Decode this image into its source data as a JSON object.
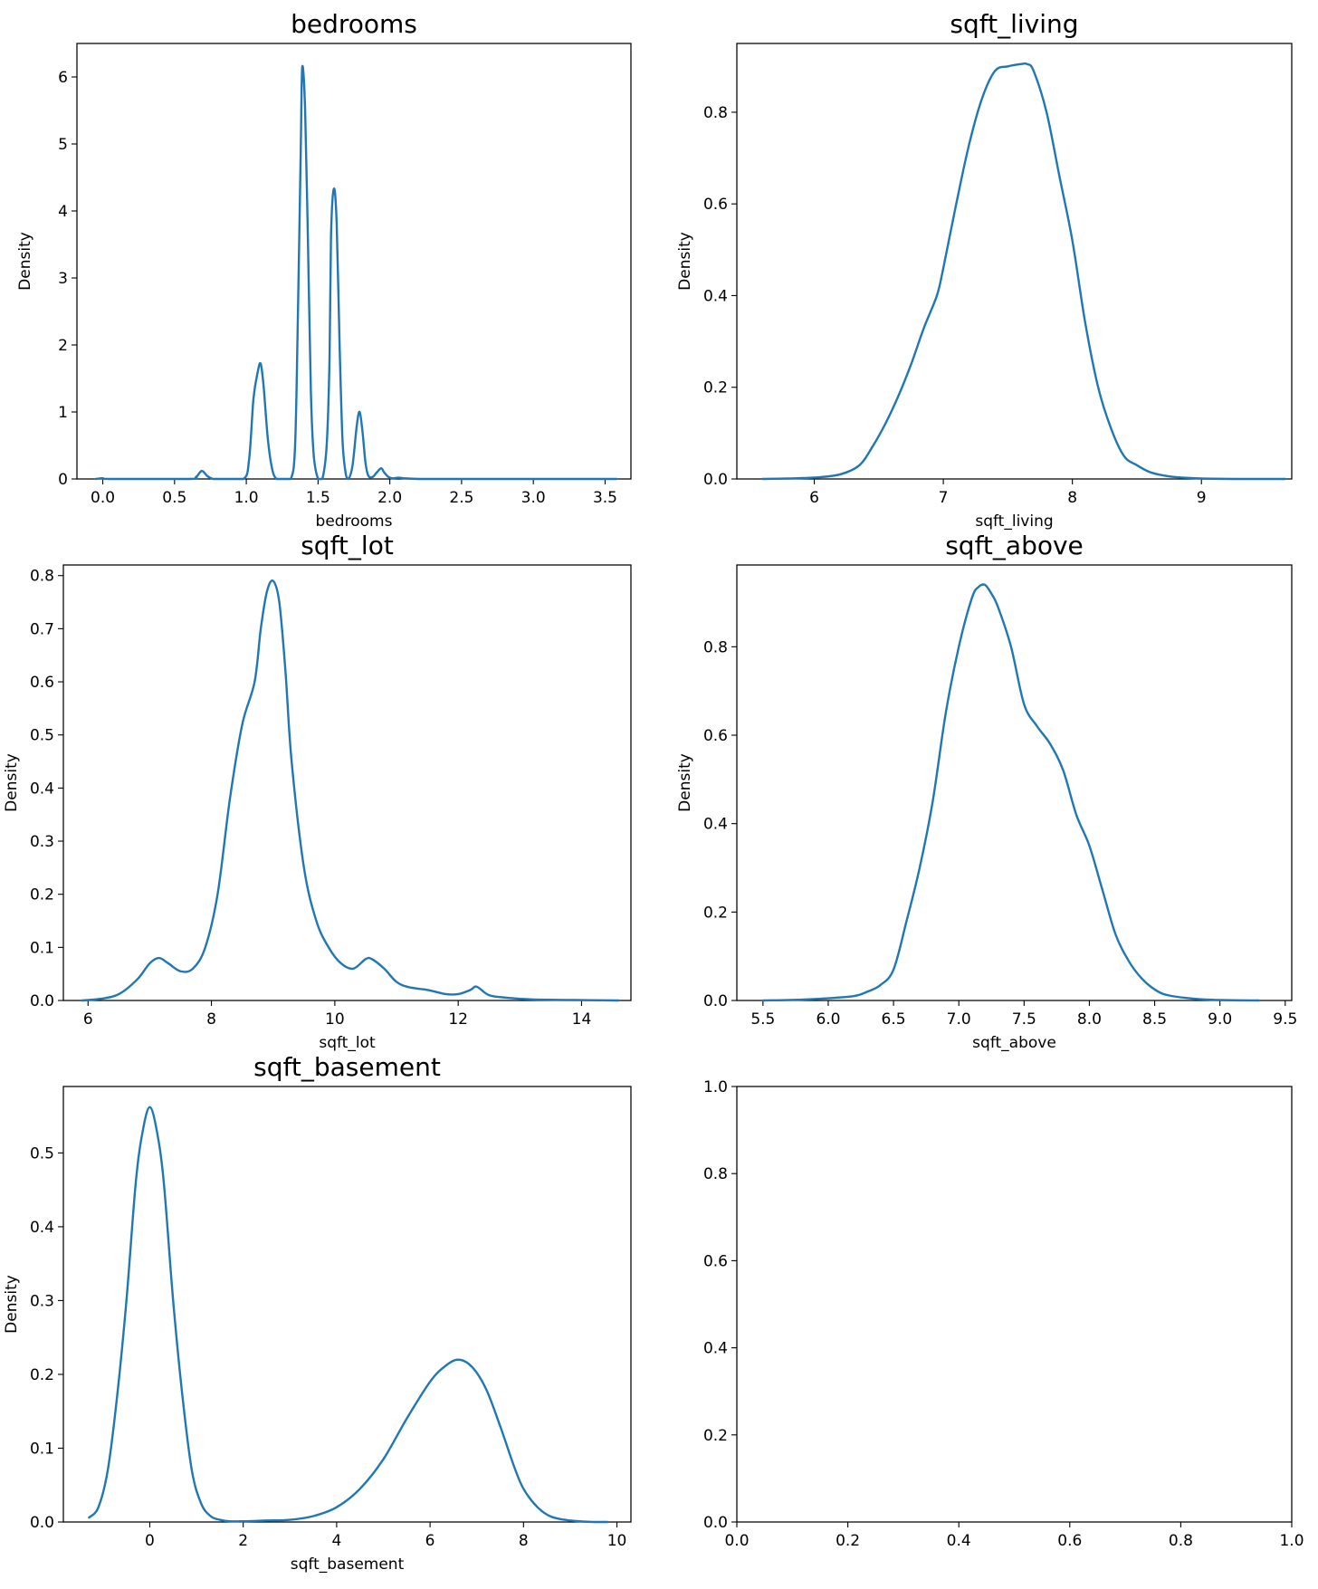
{
  "figure": {
    "line_color": "#1f77b4"
  },
  "chart_data": [
    {
      "type": "line",
      "title": "bedrooms",
      "xlabel": "bedrooms",
      "ylabel": "Density",
      "xlim": [
        -0.18,
        3.68
      ],
      "ylim": [
        0,
        6.5
      ],
      "xticks": [
        0,
        0.5,
        1,
        1.5,
        2,
        2.5,
        3,
        3.5
      ],
      "xtick_labels": [
        "0.0",
        "0.5",
        "1.0",
        "1.5",
        "2.0",
        "2.5",
        "3.0",
        "3.5"
      ],
      "yticks": [
        0,
        1,
        2,
        3,
        4,
        5,
        6
      ],
      "ytick_labels": [
        "0",
        "1",
        "2",
        "3",
        "4",
        "5",
        "6"
      ],
      "series": [
        {
          "x": [
            -0.05,
            0.0,
            0.05,
            0.6,
            0.65,
            0.69,
            0.73,
            0.77,
            0.82,
            0.98,
            1.02,
            1.05,
            1.08,
            1.1,
            1.12,
            1.15,
            1.18,
            1.21,
            1.25,
            1.31,
            1.34,
            1.36,
            1.38,
            1.39,
            1.41,
            1.43,
            1.45,
            1.47,
            1.5,
            1.53,
            1.56,
            1.58,
            1.59,
            1.61,
            1.63,
            1.65,
            1.67,
            1.69,
            1.71,
            1.74,
            1.77,
            1.79,
            1.81,
            1.83,
            1.85,
            1.88,
            1.91,
            1.94,
            1.96,
            1.99,
            2.02,
            2.06,
            2.1,
            2.2,
            2.4,
            2.6,
            3.0,
            3.58
          ],
          "y": [
            0,
            0.01,
            0,
            0,
            0.03,
            0.12,
            0.04,
            0,
            0,
            0,
            0.3,
            1.2,
            1.6,
            1.72,
            1.4,
            0.6,
            0.15,
            0,
            0,
            0,
            0.5,
            2.5,
            5.0,
            6.15,
            5.5,
            3.5,
            1.3,
            0.35,
            0,
            0,
            0.5,
            1.8,
            3.6,
            4.33,
            3.8,
            2.0,
            0.6,
            0.12,
            0,
            0.2,
            0.8,
            1.0,
            0.7,
            0.25,
            0.05,
            0.03,
            0.1,
            0.16,
            0.1,
            0.03,
            0.01,
            0.02,
            0.01,
            0,
            0,
            0,
            0,
            0
          ]
        }
      ]
    },
    {
      "type": "line",
      "title": "sqft_living",
      "xlabel": "sqft_living",
      "ylabel": "Density",
      "xlim": [
        5.4,
        9.7
      ],
      "ylim": [
        0,
        0.95
      ],
      "xticks": [
        6,
        7,
        8,
        9
      ],
      "xtick_labels": [
        "6",
        "7",
        "8",
        "9"
      ],
      "yticks": [
        0,
        0.2,
        0.4,
        0.6,
        0.8
      ],
      "ytick_labels": [
        "0.0",
        "0.2",
        "0.4",
        "0.6",
        "0.8"
      ],
      "series": [
        {
          "x": [
            5.6,
            5.8,
            6.0,
            6.2,
            6.35,
            6.45,
            6.55,
            6.65,
            6.75,
            6.85,
            6.95,
            7.0,
            7.1,
            7.2,
            7.3,
            7.4,
            7.5,
            7.6,
            7.65,
            7.7,
            7.8,
            7.9,
            8.0,
            8.1,
            8.2,
            8.3,
            8.4,
            8.5,
            8.6,
            8.7,
            8.8,
            9.0,
            9.3,
            9.65
          ],
          "y": [
            0,
            0.001,
            0.003,
            0.01,
            0.03,
            0.07,
            0.12,
            0.18,
            0.25,
            0.33,
            0.4,
            0.46,
            0.6,
            0.73,
            0.83,
            0.89,
            0.9,
            0.905,
            0.905,
            0.89,
            0.8,
            0.66,
            0.52,
            0.34,
            0.2,
            0.11,
            0.05,
            0.03,
            0.015,
            0.008,
            0.004,
            0.001,
            0,
            0
          ]
        }
      ]
    },
    {
      "type": "line",
      "title": "sqft_lot",
      "xlabel": "sqft_lot",
      "ylabel": "Density",
      "xlim": [
        5.6,
        14.8
      ],
      "ylim": [
        0,
        0.82
      ],
      "xticks": [
        6,
        8,
        10,
        12,
        14
      ],
      "xtick_labels": [
        "6",
        "8",
        "10",
        "12",
        "14"
      ],
      "yticks": [
        0,
        0.1,
        0.2,
        0.3,
        0.4,
        0.5,
        0.6,
        0.7,
        0.8
      ],
      "ytick_labels": [
        "0.0",
        "0.1",
        "0.2",
        "0.3",
        "0.4",
        "0.5",
        "0.6",
        "0.7",
        "0.8"
      ],
      "series": [
        {
          "x": [
            5.9,
            6.2,
            6.5,
            6.8,
            7.0,
            7.15,
            7.3,
            7.5,
            7.7,
            7.9,
            8.1,
            8.3,
            8.5,
            8.7,
            8.8,
            8.9,
            9.0,
            9.1,
            9.2,
            9.3,
            9.5,
            9.7,
            9.9,
            10.1,
            10.3,
            10.5,
            10.6,
            10.8,
            11.0,
            11.2,
            11.5,
            11.8,
            12.0,
            12.2,
            12.3,
            12.5,
            12.8,
            13.2,
            13.8,
            14.6
          ],
          "y": [
            0,
            0.003,
            0.012,
            0.04,
            0.07,
            0.08,
            0.07,
            0.055,
            0.06,
            0.1,
            0.2,
            0.38,
            0.52,
            0.6,
            0.7,
            0.77,
            0.79,
            0.75,
            0.62,
            0.45,
            0.25,
            0.15,
            0.1,
            0.07,
            0.06,
            0.078,
            0.078,
            0.06,
            0.035,
            0.025,
            0.02,
            0.012,
            0.012,
            0.02,
            0.026,
            0.01,
            0.005,
            0.002,
            0.001,
            0
          ]
        }
      ]
    },
    {
      "type": "line",
      "title": "sqft_above",
      "xlabel": "sqft_above",
      "ylabel": "Density",
      "xlim": [
        5.3,
        9.55
      ],
      "ylim": [
        0,
        0.985
      ],
      "xticks": [
        5.5,
        6.0,
        6.5,
        7.0,
        7.5,
        8.0,
        8.5,
        9.0,
        9.5
      ],
      "xtick_labels": [
        "5.5",
        "6.0",
        "6.5",
        "7.0",
        "7.5",
        "8.0",
        "8.5",
        "9.0",
        "9.5"
      ],
      "yticks": [
        0,
        0.2,
        0.4,
        0.6,
        0.8
      ],
      "ytick_labels": [
        "0.0",
        "0.2",
        "0.4",
        "0.6",
        "0.8"
      ],
      "series": [
        {
          "x": [
            5.5,
            5.8,
            6.0,
            6.2,
            6.3,
            6.4,
            6.5,
            6.6,
            6.7,
            6.8,
            6.9,
            7.0,
            7.1,
            7.15,
            7.2,
            7.25,
            7.3,
            7.4,
            7.5,
            7.6,
            7.7,
            7.8,
            7.9,
            8.0,
            8.1,
            8.2,
            8.3,
            8.4,
            8.5,
            8.6,
            8.8,
            9.0,
            9.3
          ],
          "y": [
            0,
            0.002,
            0.005,
            0.01,
            0.02,
            0.035,
            0.07,
            0.18,
            0.3,
            0.45,
            0.65,
            0.8,
            0.91,
            0.935,
            0.94,
            0.92,
            0.89,
            0.8,
            0.67,
            0.62,
            0.58,
            0.52,
            0.42,
            0.35,
            0.25,
            0.15,
            0.09,
            0.05,
            0.025,
            0.012,
            0.004,
            0.001,
            0
          ]
        }
      ]
    },
    {
      "type": "line",
      "title": "sqft_basement",
      "xlabel": "sqft_basement",
      "ylabel": "Density",
      "xlim": [
        -1.85,
        10.3
      ],
      "ylim": [
        0,
        0.59
      ],
      "xticks": [
        0,
        2,
        4,
        6,
        8,
        10
      ],
      "xtick_labels": [
        "0",
        "2",
        "4",
        "6",
        "8",
        "10"
      ],
      "yticks": [
        0,
        0.1,
        0.2,
        0.3,
        0.4,
        0.5
      ],
      "ytick_labels": [
        "0.0",
        "0.1",
        "0.2",
        "0.3",
        "0.4",
        "0.5"
      ],
      "series": [
        {
          "x": [
            -1.3,
            -1.1,
            -0.9,
            -0.7,
            -0.5,
            -0.3,
            -0.15,
            0.0,
            0.15,
            0.3,
            0.5,
            0.7,
            0.9,
            1.1,
            1.3,
            1.5,
            1.7,
            2.0,
            2.5,
            3.0,
            3.5,
            4.0,
            4.5,
            5.0,
            5.5,
            6.0,
            6.3,
            6.6,
            6.9,
            7.2,
            7.5,
            7.8,
            8.0,
            8.3,
            8.6,
            9.0,
            9.5,
            9.8
          ],
          "y": [
            0.006,
            0.02,
            0.07,
            0.17,
            0.3,
            0.46,
            0.53,
            0.562,
            0.53,
            0.46,
            0.3,
            0.17,
            0.07,
            0.025,
            0.008,
            0.003,
            0.001,
            0.001,
            0.002,
            0.003,
            0.008,
            0.02,
            0.045,
            0.085,
            0.14,
            0.19,
            0.21,
            0.22,
            0.21,
            0.18,
            0.13,
            0.075,
            0.045,
            0.02,
            0.007,
            0.002,
            0.0,
            0.0
          ]
        }
      ]
    },
    {
      "type": "line",
      "title": "",
      "xlabel": "",
      "ylabel": "",
      "xlim": [
        0,
        1
      ],
      "ylim": [
        0,
        1
      ],
      "xticks": [
        0,
        0.2,
        0.4,
        0.6,
        0.8,
        1.0
      ],
      "xtick_labels": [
        "0.0",
        "0.2",
        "0.4",
        "0.6",
        "0.8",
        "1.0"
      ],
      "yticks": [
        0,
        0.2,
        0.4,
        0.6,
        0.8,
        1.0
      ],
      "ytick_labels": [
        "0.0",
        "0.2",
        "0.4",
        "0.6",
        "0.8",
        "1.0"
      ],
      "series": []
    }
  ]
}
